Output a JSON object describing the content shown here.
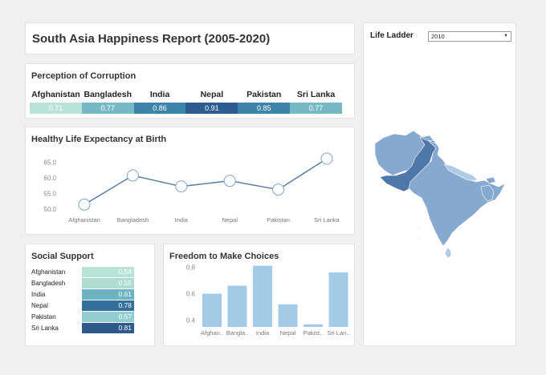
{
  "header": {
    "title": "South Asia Happiness Report (2005-2020)"
  },
  "colors": {
    "teal_light": "#b9e2d8",
    "teal_mid": "#76b9c4",
    "blue_mid": "#3d84ab",
    "blue_dark": "#2d5d8e",
    "bar_blue": "#a3cbe8",
    "line_blue": "#5b7fa6",
    "map_blue": "#86a9cf"
  },
  "corruption": {
    "title": "Perception of Corruption",
    "countries": [
      "Afghanistan",
      "Bangladesh",
      "India",
      "Nepal",
      "Pakistan",
      "Sri Lanka"
    ],
    "values": [
      "0.71",
      "0.77",
      "0.86",
      "0.91",
      "0.85",
      "0.77"
    ],
    "colors": [
      "#b9e2d8",
      "#76b9c4",
      "#3d84ab",
      "#2d5d8e",
      "#3d84ab",
      "#76b9c4"
    ]
  },
  "life_ladder": {
    "label": "Life Ladder",
    "selected": "2010"
  },
  "social": {
    "title": "Social Support",
    "rows": [
      {
        "name": "Afghanistan",
        "value": "0.54",
        "color": "#b9e2d8"
      },
      {
        "name": "Bangladesh",
        "value": "0.55",
        "color": "#aedcd2"
      },
      {
        "name": "India",
        "value": "0.61",
        "color": "#6fb3c2"
      },
      {
        "name": "Nepal",
        "value": "0.78",
        "color": "#326f9c"
      },
      {
        "name": "Pakistan",
        "value": "0.57",
        "color": "#92cdd0"
      },
      {
        "name": "Sri Lanka",
        "value": "0.81",
        "color": "#2d5a8b"
      }
    ]
  },
  "chart_data": [
    {
      "type": "line",
      "title": "Healthy Life Expectancy at Birth",
      "categories": [
        "Afghanistan",
        "Bangladesh",
        "India",
        "Nepal",
        "Pakistan",
        "Sri Lanka"
      ],
      "values": [
        51.5,
        60.8,
        57.3,
        59.1,
        56.3,
        66.2
      ],
      "yticks": [
        "50.0",
        "55.0",
        "60.0",
        "65.0"
      ],
      "ylim": [
        48.5,
        68.5
      ]
    },
    {
      "type": "bar",
      "title": "Freedom to Make Choices",
      "categories": [
        "Afghan..",
        "Bangla..",
        "India",
        "Nepal",
        "Pakist..",
        "Sri Lan.."
      ],
      "values": [
        0.6,
        0.66,
        0.81,
        0.52,
        0.37,
        0.76
      ],
      "yticks": [
        "0.4",
        "0.6",
        "0.8"
      ],
      "ylim": [
        0.35,
        0.85
      ]
    }
  ]
}
